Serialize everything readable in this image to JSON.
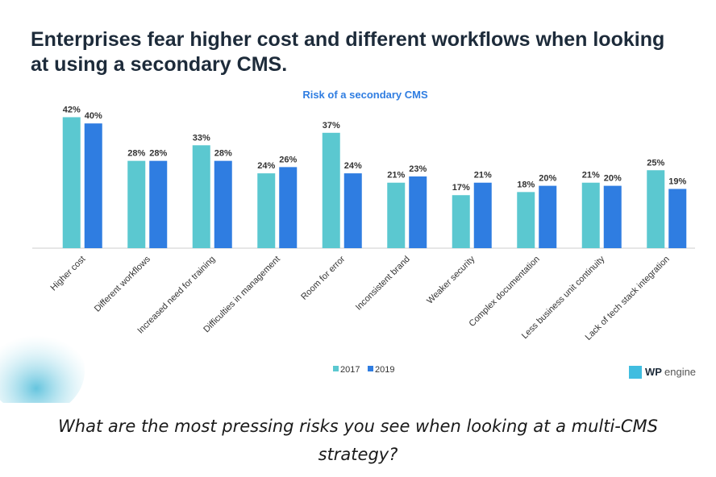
{
  "heading": "Enterprises fear higher cost and different workflows when looking at using a secondary CMS.",
  "caption": "What are the most pressing risks you see when looking at a multi-CMS strategy?",
  "logo": {
    "mark": "WP",
    "text": "engine"
  },
  "chart_data": {
    "type": "bar",
    "title": "Risk of a secondary CMS",
    "categories": [
      "Higher cost",
      "Different workflows",
      "Increased need for training",
      "Difficulties in management",
      "Room for error",
      "Inconsistent brand",
      "Weaker security",
      "Complex documentation",
      "Less business unit continuity",
      "Lack of tech stack integration"
    ],
    "series": [
      {
        "name": "2017",
        "color": "#5bc8d0",
        "values": [
          42,
          28,
          33,
          24,
          37,
          21,
          17,
          18,
          21,
          25
        ],
        "value_labels": [
          "42%",
          "28%",
          "33%",
          "24%",
          "37%",
          "21%",
          "17%",
          "18%",
          "21%",
          "25%"
        ]
      },
      {
        "name": "2019",
        "color": "#2f7de1",
        "values": [
          40,
          28,
          28,
          26,
          24,
          23,
          21,
          20,
          20,
          19
        ],
        "value_labels": [
          "40%",
          "28%",
          "28%",
          "26%",
          "24%",
          "23%",
          "21%",
          "20%",
          "20%",
          "19%"
        ]
      }
    ],
    "legend": "bottom"
  }
}
